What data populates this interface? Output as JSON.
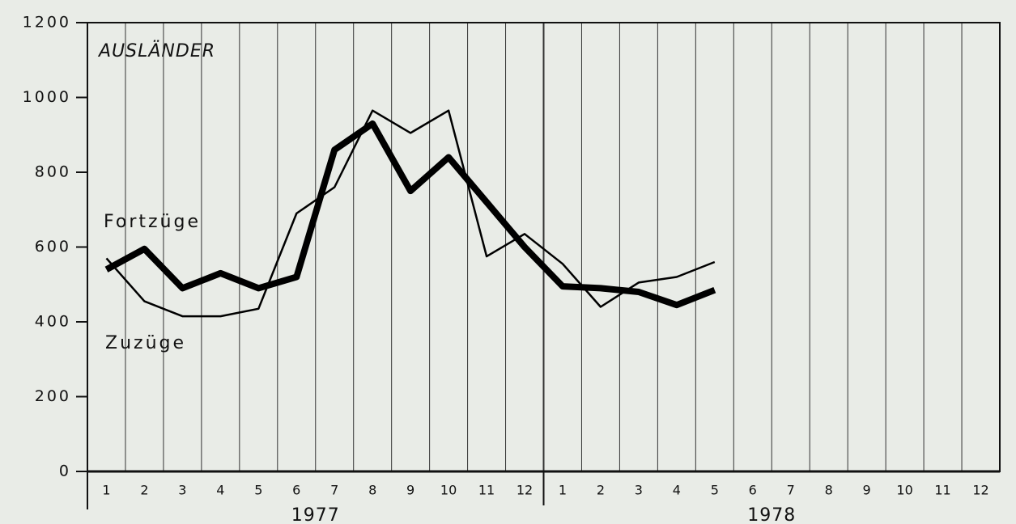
{
  "chart_data": {
    "type": "line",
    "title": "AUSLÄNDER",
    "categories": [
      "1",
      "2",
      "3",
      "4",
      "5",
      "6",
      "7",
      "8",
      "9",
      "10",
      "11",
      "12",
      "1",
      "2",
      "3",
      "4",
      "5",
      "6",
      "7",
      "8",
      "9",
      "10",
      "11",
      "12"
    ],
    "year_labels": [
      "1977",
      "1978"
    ],
    "series": [
      {
        "name": "Fortzüge",
        "color": "#000000",
        "values": [
          540,
          595,
          490,
          530,
          490,
          520,
          860,
          930,
          750,
          840,
          720,
          600,
          495,
          490,
          480,
          445,
          485,
          null,
          null,
          null,
          null,
          null,
          null,
          null
        ]
      },
      {
        "name": "Zuzüge",
        "color": "#000000",
        "values": [
          570,
          455,
          415,
          415,
          435,
          690,
          760,
          965,
          905,
          965,
          575,
          635,
          555,
          440,
          505,
          520,
          560,
          null,
          null,
          null,
          null,
          null,
          null,
          null
        ]
      }
    ],
    "ylim": [
      0,
      1200
    ],
    "yticks": [
      0,
      200,
      400,
      600,
      800,
      1000,
      1200
    ],
    "grid": true
  }
}
